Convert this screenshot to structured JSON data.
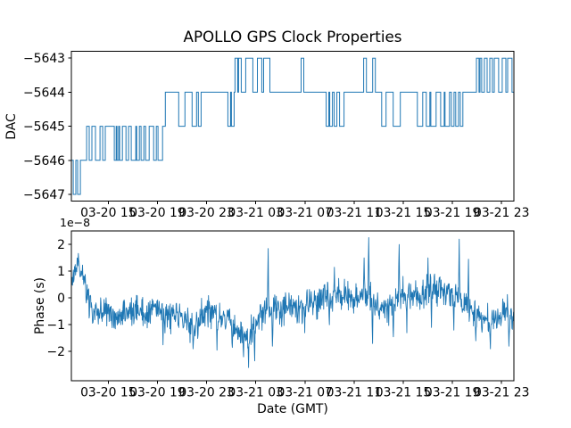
{
  "figure": {
    "title": "APOLLO GPS Clock Properties",
    "background": "#ffffff",
    "line_color": "#1f77b4",
    "text_color": "#000000"
  },
  "chart_data": [
    {
      "type": "line",
      "subtype": "step-post",
      "title": "",
      "ylabel": "DAC",
      "xlabel": "",
      "xlim": [
        12,
        48
      ],
      "ylim": [
        -5647.2,
        -5642.8
      ],
      "grid": false,
      "legend": "none",
      "yticks": [
        {
          "value": -5643,
          "label": "−5643"
        },
        {
          "value": -5644,
          "label": "−5644"
        },
        {
          "value": -5645,
          "label": "−5645"
        },
        {
          "value": -5646,
          "label": "−5646"
        },
        {
          "value": -5647,
          "label": "−5647"
        }
      ],
      "xticks": [
        {
          "value": 15,
          "label": "03-20 15"
        },
        {
          "value": 19,
          "label": "03-20 19"
        },
        {
          "value": 23,
          "label": "03-20 23"
        },
        {
          "value": 27,
          "label": "03-21 03"
        },
        {
          "value": 31,
          "label": "03-21 07"
        },
        {
          "value": 35,
          "label": "03-21 11"
        },
        {
          "value": 39,
          "label": "03-21 15"
        },
        {
          "value": 43,
          "label": "03-21 19"
        },
        {
          "value": 47,
          "label": "03-21 23"
        }
      ],
      "x_unit": "hours from 03-20 00 GMT",
      "steps": [
        [
          12.0,
          -5646
        ],
        [
          12.15,
          -5647
        ],
        [
          12.36,
          -5646
        ],
        [
          12.51,
          -5647
        ],
        [
          12.73,
          -5646
        ],
        [
          13.24,
          -5645
        ],
        [
          13.45,
          -5646
        ],
        [
          13.67,
          -5645
        ],
        [
          13.96,
          -5646
        ],
        [
          14.33,
          -5645
        ],
        [
          14.55,
          -5646
        ],
        [
          14.76,
          -5645
        ],
        [
          15.49,
          -5646
        ],
        [
          15.64,
          -5645
        ],
        [
          15.71,
          -5646
        ],
        [
          15.85,
          -5645
        ],
        [
          15.93,
          -5646
        ],
        [
          16.15,
          -5645
        ],
        [
          16.44,
          -5646
        ],
        [
          16.65,
          -5645
        ],
        [
          16.87,
          -5646
        ],
        [
          17.24,
          -5645
        ],
        [
          17.31,
          -5646
        ],
        [
          17.53,
          -5645
        ],
        [
          17.67,
          -5646
        ],
        [
          17.89,
          -5645
        ],
        [
          18.04,
          -5646
        ],
        [
          18.33,
          -5645
        ],
        [
          18.69,
          -5646
        ],
        [
          18.91,
          -5645
        ],
        [
          19.05,
          -5646
        ],
        [
          19.42,
          -5645
        ],
        [
          19.64,
          -5644
        ],
        [
          20.73,
          -5645
        ],
        [
          21.24,
          -5644
        ],
        [
          21.82,
          -5645
        ],
        [
          22.18,
          -5644
        ],
        [
          22.33,
          -5645
        ],
        [
          22.55,
          -5644
        ],
        [
          24.73,
          -5645
        ],
        [
          24.95,
          -5644
        ],
        [
          25.02,
          -5645
        ],
        [
          25.24,
          -5644
        ],
        [
          25.31,
          -5643
        ],
        [
          25.53,
          -5644
        ],
        [
          25.6,
          -5643
        ],
        [
          25.82,
          -5644
        ],
        [
          26.18,
          -5643
        ],
        [
          26.76,
          -5644
        ],
        [
          27.13,
          -5643
        ],
        [
          27.49,
          -5644
        ],
        [
          27.64,
          -5643
        ],
        [
          28.15,
          -5644
        ],
        [
          30.69,
          -5643
        ],
        [
          30.91,
          -5644
        ],
        [
          32.73,
          -5645
        ],
        [
          32.95,
          -5644
        ],
        [
          33.02,
          -5645
        ],
        [
          33.24,
          -5644
        ],
        [
          33.38,
          -5645
        ],
        [
          33.6,
          -5644
        ],
        [
          33.82,
          -5645
        ],
        [
          34.18,
          -5644
        ],
        [
          35.78,
          -5643
        ],
        [
          36.0,
          -5644
        ],
        [
          36.51,
          -5643
        ],
        [
          36.73,
          -5644
        ],
        [
          37.24,
          -5645
        ],
        [
          37.6,
          -5644
        ],
        [
          38.18,
          -5645
        ],
        [
          38.76,
          -5644
        ],
        [
          40.15,
          -5645
        ],
        [
          40.58,
          -5644
        ],
        [
          40.87,
          -5645
        ],
        [
          41.16,
          -5644
        ],
        [
          41.24,
          -5645
        ],
        [
          41.67,
          -5644
        ],
        [
          42.04,
          -5645
        ],
        [
          42.33,
          -5644
        ],
        [
          42.4,
          -5645
        ],
        [
          42.76,
          -5644
        ],
        [
          42.91,
          -5645
        ],
        [
          43.13,
          -5644
        ],
        [
          43.27,
          -5645
        ],
        [
          43.49,
          -5644
        ],
        [
          43.64,
          -5645
        ],
        [
          43.85,
          -5644
        ],
        [
          44.95,
          -5643
        ],
        [
          45.16,
          -5644
        ],
        [
          45.24,
          -5643
        ],
        [
          45.38,
          -5644
        ],
        [
          45.6,
          -5643
        ],
        [
          45.82,
          -5644
        ],
        [
          46.04,
          -5643
        ],
        [
          46.25,
          -5644
        ],
        [
          46.4,
          -5643
        ],
        [
          46.76,
          -5644
        ],
        [
          47.05,
          -5643
        ],
        [
          47.35,
          -5644
        ],
        [
          47.49,
          -5643
        ],
        [
          47.85,
          -5644
        ],
        [
          48.0,
          -5644
        ]
      ]
    },
    {
      "type": "line",
      "subtype": "noisy",
      "title": "",
      "ylabel": "Phase (s)",
      "xlabel": "Date (GMT)",
      "scale_label": "1e−8",
      "scale_factor": 1e-08,
      "xlim": [
        12,
        48
      ],
      "ylim": [
        -3.1,
        2.5
      ],
      "grid": false,
      "legend": "none",
      "yticks": [
        {
          "value": 2,
          "label": "2"
        },
        {
          "value": 1,
          "label": "1"
        },
        {
          "value": 0,
          "label": "0"
        },
        {
          "value": -1,
          "label": "−1"
        },
        {
          "value": -2,
          "label": "−2"
        }
      ],
      "xticks": [
        {
          "value": 15,
          "label": "03-20 15"
        },
        {
          "value": 19,
          "label": "03-20 19"
        },
        {
          "value": 23,
          "label": "03-20 23"
        },
        {
          "value": 27,
          "label": "03-21 03"
        },
        {
          "value": 31,
          "label": "03-21 07"
        },
        {
          "value": 35,
          "label": "03-21 11"
        },
        {
          "value": 39,
          "label": "03-21 15"
        },
        {
          "value": 43,
          "label": "03-21 19"
        },
        {
          "value": 47,
          "label": "03-21 23"
        }
      ],
      "x_unit": "hours from 03-20 00 GMT",
      "trend": [
        [
          12.0,
          0.45
        ],
        [
          12.36,
          1.25
        ],
        [
          12.6,
          1.3
        ],
        [
          12.9,
          0.75
        ],
        [
          13.25,
          0.2
        ],
        [
          13.6,
          -0.35
        ],
        [
          14.2,
          -0.6
        ],
        [
          14.76,
          -0.3
        ],
        [
          15.35,
          -0.6
        ],
        [
          15.93,
          -0.62
        ],
        [
          16.5,
          -0.5
        ],
        [
          17.1,
          -0.45
        ],
        [
          17.67,
          -0.52
        ],
        [
          18.25,
          -0.55
        ],
        [
          18.84,
          -0.3
        ],
        [
          19.42,
          -0.55
        ],
        [
          20.0,
          -0.75
        ],
        [
          20.58,
          -0.65
        ],
        [
          21.16,
          -0.9
        ],
        [
          21.75,
          -1.05
        ],
        [
          22.33,
          -0.9
        ],
        [
          22.9,
          -0.55
        ],
        [
          23.5,
          -0.45
        ],
        [
          24.07,
          -0.6
        ],
        [
          24.65,
          -0.8
        ],
        [
          25.24,
          -1.0
        ],
        [
          25.82,
          -1.3
        ],
        [
          26.4,
          -1.4
        ],
        [
          26.98,
          -1.0
        ],
        [
          27.56,
          -0.55
        ],
        [
          28.15,
          -0.35
        ],
        [
          28.73,
          -0.55
        ],
        [
          29.3,
          -0.42
        ],
        [
          29.9,
          -0.3
        ],
        [
          30.47,
          -0.35
        ],
        [
          31.05,
          -0.3
        ],
        [
          31.64,
          -0.2
        ],
        [
          32.2,
          -0.1
        ],
        [
          32.8,
          0.1
        ],
        [
          33.38,
          0.2
        ],
        [
          33.96,
          0.15
        ],
        [
          34.55,
          0.05
        ],
        [
          35.13,
          0.0
        ],
        [
          35.7,
          0.1
        ],
        [
          36.3,
          0.05
        ],
        [
          36.87,
          -0.3
        ],
        [
          37.45,
          -0.5
        ],
        [
          38.04,
          -0.2
        ],
        [
          38.6,
          0.3
        ],
        [
          39.2,
          0.15
        ],
        [
          39.78,
          -0.05
        ],
        [
          40.36,
          0.05
        ],
        [
          40.95,
          0.15
        ],
        [
          41.53,
          0.3
        ],
        [
          42.1,
          0.25
        ],
        [
          42.7,
          0.2
        ],
        [
          43.27,
          0.1
        ],
        [
          43.85,
          -0.2
        ],
        [
          44.44,
          -0.45
        ],
        [
          45.02,
          -0.7
        ],
        [
          45.6,
          -0.85
        ],
        [
          46.18,
          -0.8
        ],
        [
          46.76,
          -0.62
        ],
        [
          47.35,
          -0.5
        ],
        [
          48.0,
          -0.72
        ]
      ],
      "spikes": [
        [
          12.5,
          1.47
        ],
        [
          19.45,
          -1.75
        ],
        [
          21.9,
          -1.9
        ],
        [
          23.85,
          -1.95
        ],
        [
          25.1,
          -1.85
        ],
        [
          26.0,
          -2.2
        ],
        [
          26.4,
          -2.6
        ],
        [
          26.9,
          -2.35
        ],
        [
          28.0,
          1.85
        ],
        [
          28.35,
          -1.8
        ],
        [
          31.0,
          -1.3
        ],
        [
          33.0,
          -1.0
        ],
        [
          33.4,
          1.15
        ],
        [
          35.8,
          1.5
        ],
        [
          36.2,
          2.26
        ],
        [
          36.5,
          -1.7
        ],
        [
          38.2,
          -1.45
        ],
        [
          38.65,
          2.0
        ],
        [
          39.3,
          -1.3
        ],
        [
          41.0,
          1.5
        ],
        [
          41.3,
          -1.1
        ],
        [
          43.1,
          -1.2
        ],
        [
          43.55,
          2.2
        ],
        [
          44.3,
          1.45
        ],
        [
          44.9,
          -1.6
        ],
        [
          46.1,
          -1.9
        ],
        [
          47.6,
          -1.8
        ]
      ],
      "noise_amplitude": 0.45,
      "n_points": 1150,
      "seed": 20210321
    }
  ]
}
